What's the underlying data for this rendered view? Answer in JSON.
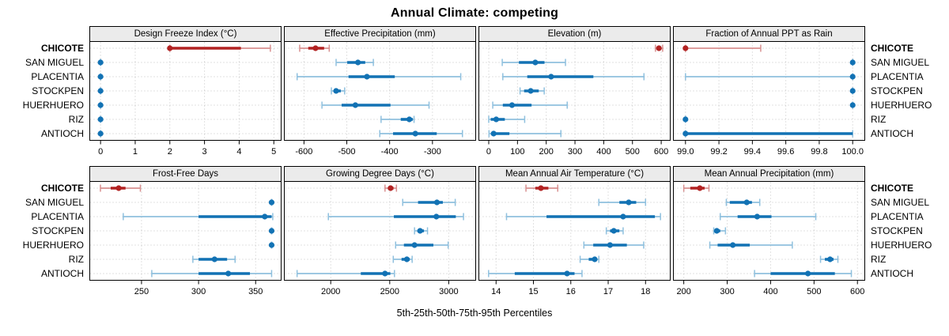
{
  "title": "Annual Climate: competing",
  "x_axis_caption": "5th-25th-50th-75th-95th Percentiles",
  "sites": [
    "CHICOTE",
    "SAN MIGUEL",
    "PLACENTIA",
    "STOCKPEN",
    "HUERHUERO",
    "RIZ",
    "ANTIOCH"
  ],
  "highlight_site": "CHICOTE",
  "colors": {
    "highlight": "#b22222",
    "highlight_light": "#d89090",
    "normal": "#1272b4",
    "normal_light": "#8fc0de",
    "strip_bg": "#ebebeb",
    "grid": "#c4c4c4",
    "border": "#000000"
  },
  "chart_data": {
    "type": "dotplot",
    "layout": "4x2 trellis, shared site rows",
    "statistic": "percentiles [p5, p25, p50, p75, p95] per site",
    "grid": "dotted",
    "legend_position": "none",
    "panels": [
      {
        "title": "Design Freeze Index (°C)",
        "xlim": [
          -0.3,
          5.2
        ],
        "tick_values": [
          0,
          1,
          2,
          3,
          4,
          5
        ],
        "tick_labels": [
          "0",
          "1",
          "2",
          "3",
          "4",
          "5"
        ],
        "values": [
          [
            2.0,
            2.0,
            2.0,
            4.05,
            4.9
          ],
          [
            0,
            0,
            0,
            0,
            0
          ],
          [
            0,
            0,
            0,
            0,
            0
          ],
          [
            0,
            0,
            0,
            0,
            0
          ],
          [
            0,
            0,
            0,
            0,
            0
          ],
          [
            0,
            0,
            0,
            0,
            0
          ],
          [
            0,
            0,
            0,
            0,
            0
          ]
        ]
      },
      {
        "title": "Effective Precipitation (mm)",
        "xlim": [
          -645,
          -200
        ],
        "tick_values": [
          -600,
          -500,
          -400,
          -300
        ],
        "tick_labels": [
          "-600",
          "-500",
          "-400",
          "-300"
        ],
        "values": [
          [
            -610,
            -590,
            -573,
            -553,
            -541
          ],
          [
            -525,
            -499,
            -474,
            -457,
            -438
          ],
          [
            -616,
            -496,
            -453,
            -388,
            -234
          ],
          [
            -536,
            -530,
            -525,
            -514,
            -505
          ],
          [
            -558,
            -512,
            -480,
            -398,
            -308
          ],
          [
            -420,
            -374,
            -354,
            -346,
            -343
          ],
          [
            -423,
            -392,
            -340,
            -290,
            -230
          ]
        ]
      },
      {
        "title": "Elevation (m)",
        "xlim": [
          -33,
          630
        ],
        "tick_values": [
          0,
          100,
          200,
          300,
          400,
          500,
          600
        ],
        "tick_labels": [
          "0",
          "100",
          "200",
          "300",
          "400",
          "500",
          "600"
        ],
        "values": [
          [
            580,
            586,
            592,
            599,
            605
          ],
          [
            47,
            105,
            162,
            194,
            267
          ],
          [
            49,
            134,
            217,
            364,
            540
          ],
          [
            109,
            123,
            146,
            174,
            193
          ],
          [
            14,
            49,
            81,
            149,
            273
          ],
          [
            0,
            7,
            26,
            56,
            125
          ],
          [
            1,
            8,
            17,
            72,
            251
          ]
        ]
      },
      {
        "title": "Fraction of Annual PPT as Rain",
        "xlim": [
          98.93,
          100.07
        ],
        "tick_values": [
          99.0,
          99.2,
          99.4,
          99.6,
          99.8,
          100.0
        ],
        "tick_labels": [
          "99.0",
          "99.2",
          "99.4",
          "99.6",
          "99.8",
          "100.0"
        ],
        "values": [
          [
            99.0,
            99.0,
            99.0,
            99.0,
            99.45
          ],
          [
            100.0,
            100.0,
            100.0,
            100.0,
            100.0
          ],
          [
            99.0,
            100.0,
            100.0,
            100.0,
            100.0
          ],
          [
            100.0,
            100.0,
            100.0,
            100.0,
            100.0
          ],
          [
            100.0,
            100.0,
            100.0,
            100.0,
            100.0
          ],
          [
            99.0,
            99.0,
            99.0,
            99.0,
            99.0
          ],
          [
            99.0,
            99.0,
            99.0,
            100.0,
            100.0
          ]
        ]
      },
      {
        "title": "Frost-Free Days",
        "xlim": [
          205,
          372
        ],
        "tick_values": [
          250,
          300,
          350
        ],
        "tick_labels": [
          "250",
          "300",
          "350"
        ],
        "values": [
          [
            214,
            223,
            230,
            236,
            249
          ],
          [
            364,
            364,
            364,
            364,
            364
          ],
          [
            234,
            300,
            358,
            364,
            365
          ],
          [
            364,
            364,
            364,
            364,
            364
          ],
          [
            364,
            364,
            364,
            364,
            364
          ],
          [
            295,
            300,
            314,
            325,
            332
          ],
          [
            259,
            300,
            326,
            345,
            364
          ]
        ]
      },
      {
        "title": "Growing Degree Days (°C)",
        "xlim": [
          1610,
          3225
        ],
        "tick_values": [
          2000,
          2500,
          3000
        ],
        "tick_labels": [
          "2000",
          "2500",
          "3000"
        ],
        "values": [
          [
            2460,
            2485,
            2507,
            2532,
            2557
          ],
          [
            2610,
            2740,
            2900,
            2950,
            3055
          ],
          [
            1980,
            2535,
            2895,
            3060,
            3125
          ],
          [
            2710,
            2735,
            2757,
            2790,
            2820
          ],
          [
            2550,
            2620,
            2710,
            2870,
            2995
          ],
          [
            2530,
            2600,
            2645,
            2670,
            2690
          ],
          [
            1715,
            2255,
            2460,
            2505,
            2540
          ]
        ]
      },
      {
        "title": "Mean Annual Air Temperature (°C)",
        "xlim": [
          13.55,
          18.65
        ],
        "tick_values": [
          14,
          15,
          16,
          17,
          18
        ],
        "tick_labels": [
          "14",
          "15",
          "16",
          "17",
          "18"
        ],
        "values": [
          [
            14.8,
            15.05,
            15.2,
            15.4,
            15.65
          ],
          [
            16.75,
            17.3,
            17.55,
            17.75,
            18.0
          ],
          [
            14.28,
            15.35,
            17.4,
            18.25,
            18.4
          ],
          [
            16.95,
            17.05,
            17.15,
            17.3,
            17.4
          ],
          [
            16.35,
            16.6,
            17.05,
            17.5,
            17.95
          ],
          [
            16.25,
            16.48,
            16.64,
            16.7,
            16.75
          ],
          [
            13.8,
            14.5,
            15.9,
            16.1,
            16.3
          ]
        ]
      },
      {
        "title": "Mean Annual Precipitation (mm)",
        "xlim": [
          177,
          616
        ],
        "tick_values": [
          200,
          300,
          400,
          500,
          600
        ],
        "tick_labels": [
          "200",
          "300",
          "400",
          "500",
          "600"
        ],
        "values": [
          [
            200,
            215,
            237,
            248,
            258
          ],
          [
            298,
            306,
            345,
            357,
            375
          ],
          [
            284,
            324,
            369,
            402,
            504
          ],
          [
            269,
            272,
            276,
            284,
            296
          ],
          [
            260,
            278,
            313,
            352,
            450
          ],
          [
            515,
            525,
            537,
            545,
            555
          ],
          [
            363,
            400,
            486,
            548,
            586
          ]
        ]
      }
    ]
  }
}
